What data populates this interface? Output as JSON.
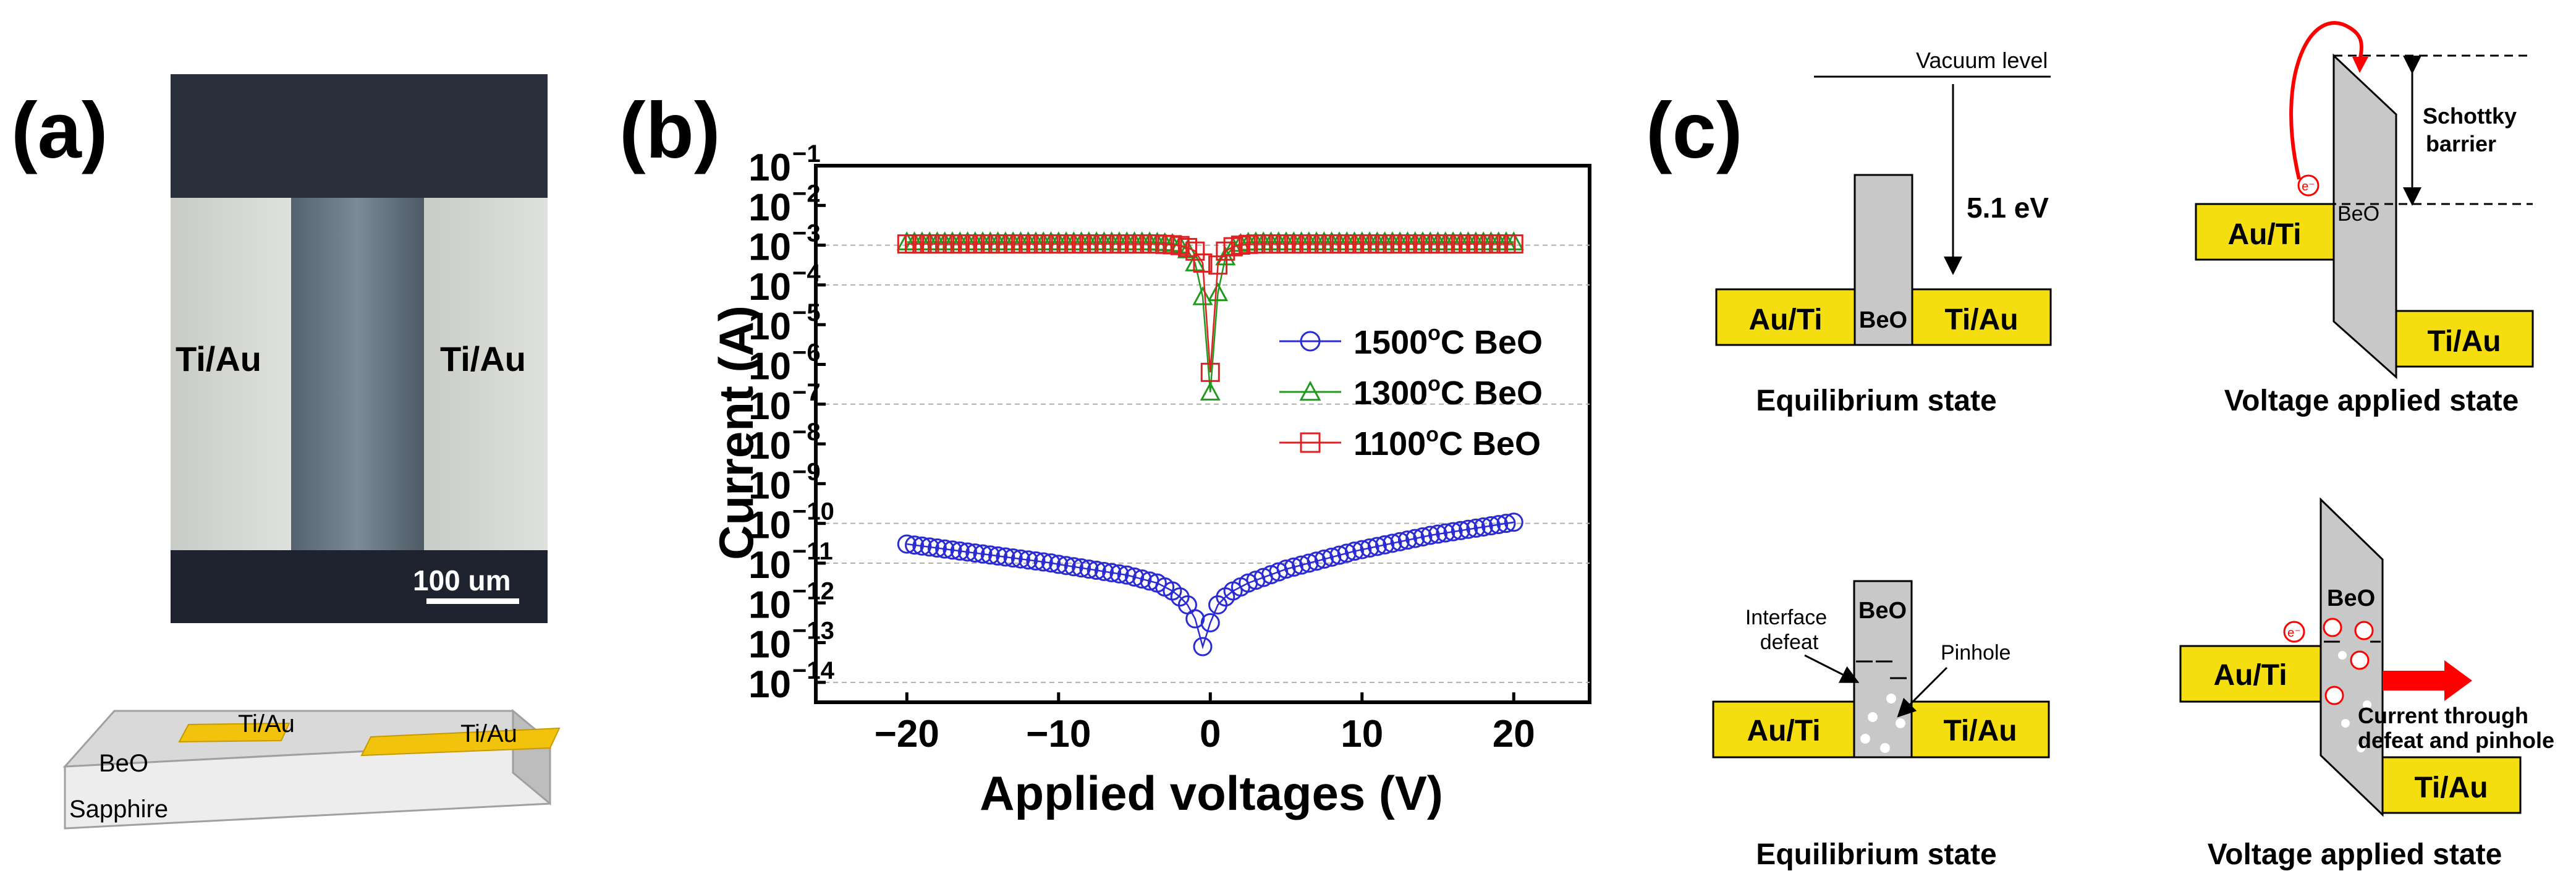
{
  "panels": {
    "a": "(a)",
    "b": "(b)",
    "c": "(c)"
  },
  "panel_a": {
    "micro_left_label": "Ti/Au",
    "micro_right_label": "Ti/Au",
    "scale_bar_label": "100 um",
    "device": {
      "pad_left": "Ti/Au",
      "pad_right": "Ti/Au",
      "film": "BeO",
      "substrate": "Sapphire"
    }
  },
  "chart_data": {
    "type": "scatter",
    "title": "",
    "xlabel": "Applied voltages (V)",
    "ylabel": "Current (A)",
    "xlim": [
      -26,
      25
    ],
    "ylim_log10": [
      -14.5,
      -1
    ],
    "yscale": "log",
    "x_ticks": [
      -20,
      -10,
      0,
      10,
      20
    ],
    "x_tick_labels": [
      "−20",
      "−10",
      "0",
      "10",
      "20"
    ],
    "y_tick_exponents": [
      -1,
      -2,
      -3,
      -4,
      -5,
      -6,
      -7,
      -8,
      -9,
      -10,
      -11,
      -12,
      -13,
      -14
    ],
    "y_tick_base": "10",
    "dashed_gridlines_log10": [
      -3,
      -4,
      -7,
      -10,
      -11,
      -14
    ],
    "legend_position": "center-right",
    "series": [
      {
        "name": "1500°C BeO",
        "legend_prefix": "1500",
        "legend_sup": "o",
        "legend_suffix": "C BeO",
        "color": "#2b2bd4",
        "marker": "circle",
        "x": [
          -20,
          -19.5,
          -19,
          -18.5,
          -18,
          -17.5,
          -17,
          -16.5,
          -16,
          -15.5,
          -15,
          -14.5,
          -14,
          -13.5,
          -13,
          -12.5,
          -12,
          -11.5,
          -11,
          -10.5,
          -10,
          -9.5,
          -9,
          -8.5,
          -8,
          -7.5,
          -7,
          -6.5,
          -6,
          -5.5,
          -5,
          -4.5,
          -4,
          -3.5,
          -3,
          -2.5,
          -2,
          -1.5,
          -1,
          -0.5,
          0,
          0.5,
          1,
          1.5,
          2,
          2.5,
          3,
          3.5,
          4,
          4.5,
          5,
          5.5,
          6,
          6.5,
          7,
          7.5,
          8,
          8.5,
          9,
          9.5,
          10,
          10.5,
          11,
          11.5,
          12,
          12.5,
          13,
          13.5,
          14,
          14.5,
          15,
          15.5,
          16,
          16.5,
          17,
          17.5,
          18,
          18.5,
          19,
          19.5,
          20
        ],
        "log10_values": [
          -10.52,
          -10.545,
          -10.57,
          -10.595,
          -10.62,
          -10.645,
          -10.67,
          -10.695,
          -10.72,
          -10.745,
          -10.77,
          -10.795,
          -10.82,
          -10.845,
          -10.87,
          -10.895,
          -10.92,
          -10.945,
          -10.97,
          -10.995,
          -11.03,
          -11.06,
          -11.09,
          -11.12,
          -11.15,
          -11.18,
          -11.21,
          -11.24,
          -11.27,
          -11.3,
          -11.35,
          -11.4,
          -11.45,
          -11.5,
          -11.6,
          -11.7,
          -11.85,
          -12.05,
          -12.4,
          -13.1,
          -12.5,
          -12.05,
          -11.85,
          -11.7,
          -11.6,
          -11.5,
          -11.43,
          -11.36,
          -11.29,
          -11.22,
          -11.15,
          -11.1,
          -11.05,
          -11,
          -10.95,
          -10.9,
          -10.85,
          -10.8,
          -10.75,
          -10.7,
          -10.66,
          -10.62,
          -10.58,
          -10.54,
          -10.5,
          -10.46,
          -10.42,
          -10.38,
          -10.34,
          -10.3,
          -10.27,
          -10.24,
          -10.21,
          -10.18,
          -10.15,
          -10.12,
          -10.09,
          -10.06,
          -10.03,
          -10.0,
          -9.97
        ]
      },
      {
        "name": "1300°C BeO",
        "legend_prefix": "1300",
        "legend_sup": "o",
        "legend_suffix": "C BeO",
        "color": "#1f9a1f",
        "marker": "triangle",
        "x": [
          -20,
          -19.5,
          -19,
          -18.5,
          -18,
          -17.5,
          -17,
          -16.5,
          -16,
          -15.5,
          -15,
          -14.5,
          -14,
          -13.5,
          -13,
          -12.5,
          -12,
          -11.5,
          -11,
          -10.5,
          -10,
          -9.5,
          -9,
          -8.5,
          -8,
          -7.5,
          -7,
          -6.5,
          -6,
          -5.5,
          -5,
          -4.5,
          -4,
          -3.5,
          -3,
          -2.5,
          -2,
          -1.5,
          -1,
          -0.5,
          0,
          0.5,
          1,
          1.5,
          2,
          2.5,
          3,
          3.5,
          4,
          4.5,
          5,
          5.5,
          6,
          6.5,
          7,
          7.5,
          8,
          8.5,
          9,
          9.5,
          10,
          10.5,
          11,
          11.5,
          12,
          12.5,
          13,
          13.5,
          14,
          14.5,
          15,
          15.5,
          16,
          16.5,
          17,
          17.5,
          18,
          18.5,
          19,
          19.5,
          20
        ],
        "log10_values": [
          -2.92,
          -2.92,
          -2.92,
          -2.92,
          -2.92,
          -2.92,
          -2.92,
          -2.92,
          -2.92,
          -2.92,
          -2.92,
          -2.92,
          -2.92,
          -2.92,
          -2.92,
          -2.92,
          -2.92,
          -2.92,
          -2.92,
          -2.92,
          -2.92,
          -2.92,
          -2.92,
          -2.92,
          -2.92,
          -2.92,
          -2.92,
          -2.92,
          -2.92,
          -2.92,
          -2.92,
          -2.92,
          -2.92,
          -2.93,
          -2.94,
          -2.96,
          -3.0,
          -3.12,
          -3.45,
          -4.3,
          -6.7,
          -4.2,
          -3.3,
          -3.05,
          -2.96,
          -2.93,
          -2.92,
          -2.92,
          -2.92,
          -2.92,
          -2.92,
          -2.92,
          -2.92,
          -2.92,
          -2.92,
          -2.92,
          -2.92,
          -2.92,
          -2.92,
          -2.92,
          -2.92,
          -2.92,
          -2.92,
          -2.92,
          -2.92,
          -2.92,
          -2.92,
          -2.92,
          -2.92,
          -2.92,
          -2.92,
          -2.92,
          -2.92,
          -2.92,
          -2.92,
          -2.92,
          -2.92,
          -2.92,
          -2.92,
          -2.92,
          -2.92
        ]
      },
      {
        "name": "1100°C BeO",
        "legend_prefix": "1100",
        "legend_sup": "o",
        "legend_suffix": "C BeO",
        "color": "#e02020",
        "marker": "square",
        "x": [
          -20,
          -19.5,
          -19,
          -18.5,
          -18,
          -17.5,
          -17,
          -16.5,
          -16,
          -15.5,
          -15,
          -14.5,
          -14,
          -13.5,
          -13,
          -12.5,
          -12,
          -11.5,
          -11,
          -10.5,
          -10,
          -9.5,
          -9,
          -8.5,
          -8,
          -7.5,
          -7,
          -6.5,
          -6,
          -5.5,
          -5,
          -4.5,
          -4,
          -3.5,
          -3,
          -2.5,
          -2,
          -1.5,
          -1,
          -0.5,
          0,
          0.5,
          1,
          1.5,
          2,
          2.5,
          3,
          3.5,
          4,
          4.5,
          5,
          5.5,
          6,
          6.5,
          7,
          7.5,
          8,
          8.5,
          9,
          9.5,
          10,
          10.5,
          11,
          11.5,
          12,
          12.5,
          13,
          13.5,
          14,
          14.5,
          15,
          15.5,
          16,
          16.5,
          17,
          17.5,
          18,
          18.5,
          19,
          19.5,
          20
        ],
        "log10_values": [
          -2.97,
          -2.97,
          -2.97,
          -2.97,
          -2.97,
          -2.97,
          -2.97,
          -2.97,
          -2.97,
          -2.97,
          -2.97,
          -2.97,
          -2.97,
          -2.97,
          -2.97,
          -2.97,
          -2.97,
          -2.97,
          -2.97,
          -2.97,
          -2.97,
          -2.97,
          -2.97,
          -2.97,
          -2.97,
          -2.97,
          -2.97,
          -2.97,
          -2.97,
          -2.97,
          -2.97,
          -2.97,
          -2.97,
          -2.97,
          -2.98,
          -2.99,
          -3.01,
          -3.06,
          -3.15,
          -3.45,
          -6.2,
          -3.5,
          -3.15,
          -3.04,
          -3.0,
          -2.98,
          -2.97,
          -2.97,
          -2.97,
          -2.97,
          -2.97,
          -2.97,
          -2.97,
          -2.97,
          -2.97,
          -2.97,
          -2.97,
          -2.97,
          -2.97,
          -2.97,
          -2.97,
          -2.97,
          -2.97,
          -2.97,
          -2.97,
          -2.97,
          -2.97,
          -2.97,
          -2.97,
          -2.97,
          -2.97,
          -2.97,
          -2.97,
          -2.97,
          -2.97,
          -2.97,
          -2.97,
          -2.97,
          -2.97,
          -2.97,
          -2.97
        ]
      }
    ]
  },
  "panel_c": {
    "eq1": {
      "left": "Au/Ti",
      "mid": "BeO",
      "right": "Ti/Au",
      "vacuum": "Vacuum level",
      "energy": "5.1 eV",
      "caption": "Equilibrium state"
    },
    "va1": {
      "left": "Au/Ti",
      "oxide": "BeO",
      "right": "Ti/Au",
      "barrier_line1": "Schottky",
      "barrier_line2": "barrier",
      "electron": "e⁻",
      "caption": "Voltage applied state"
    },
    "eq2": {
      "left": "Au/Ti",
      "mid": "BeO",
      "right": "Ti/Au",
      "interface_line1": "Interface",
      "interface_line2": "defeat",
      "pinhole": "Pinhole",
      "caption": "Equilibrium state"
    },
    "va2": {
      "left": "Au/Ti",
      "oxide": "BeO",
      "right": "Ti/Au",
      "current_line1": "Current through",
      "current_line2": "defeat and pinhole",
      "electron": "e⁻",
      "caption": "Voltage applied state"
    }
  },
  "colors": {
    "gold": "#f5de0f",
    "oxide_gray": "#c8c8c8",
    "dark": "#000000",
    "arrow_red": "#ff0000"
  }
}
